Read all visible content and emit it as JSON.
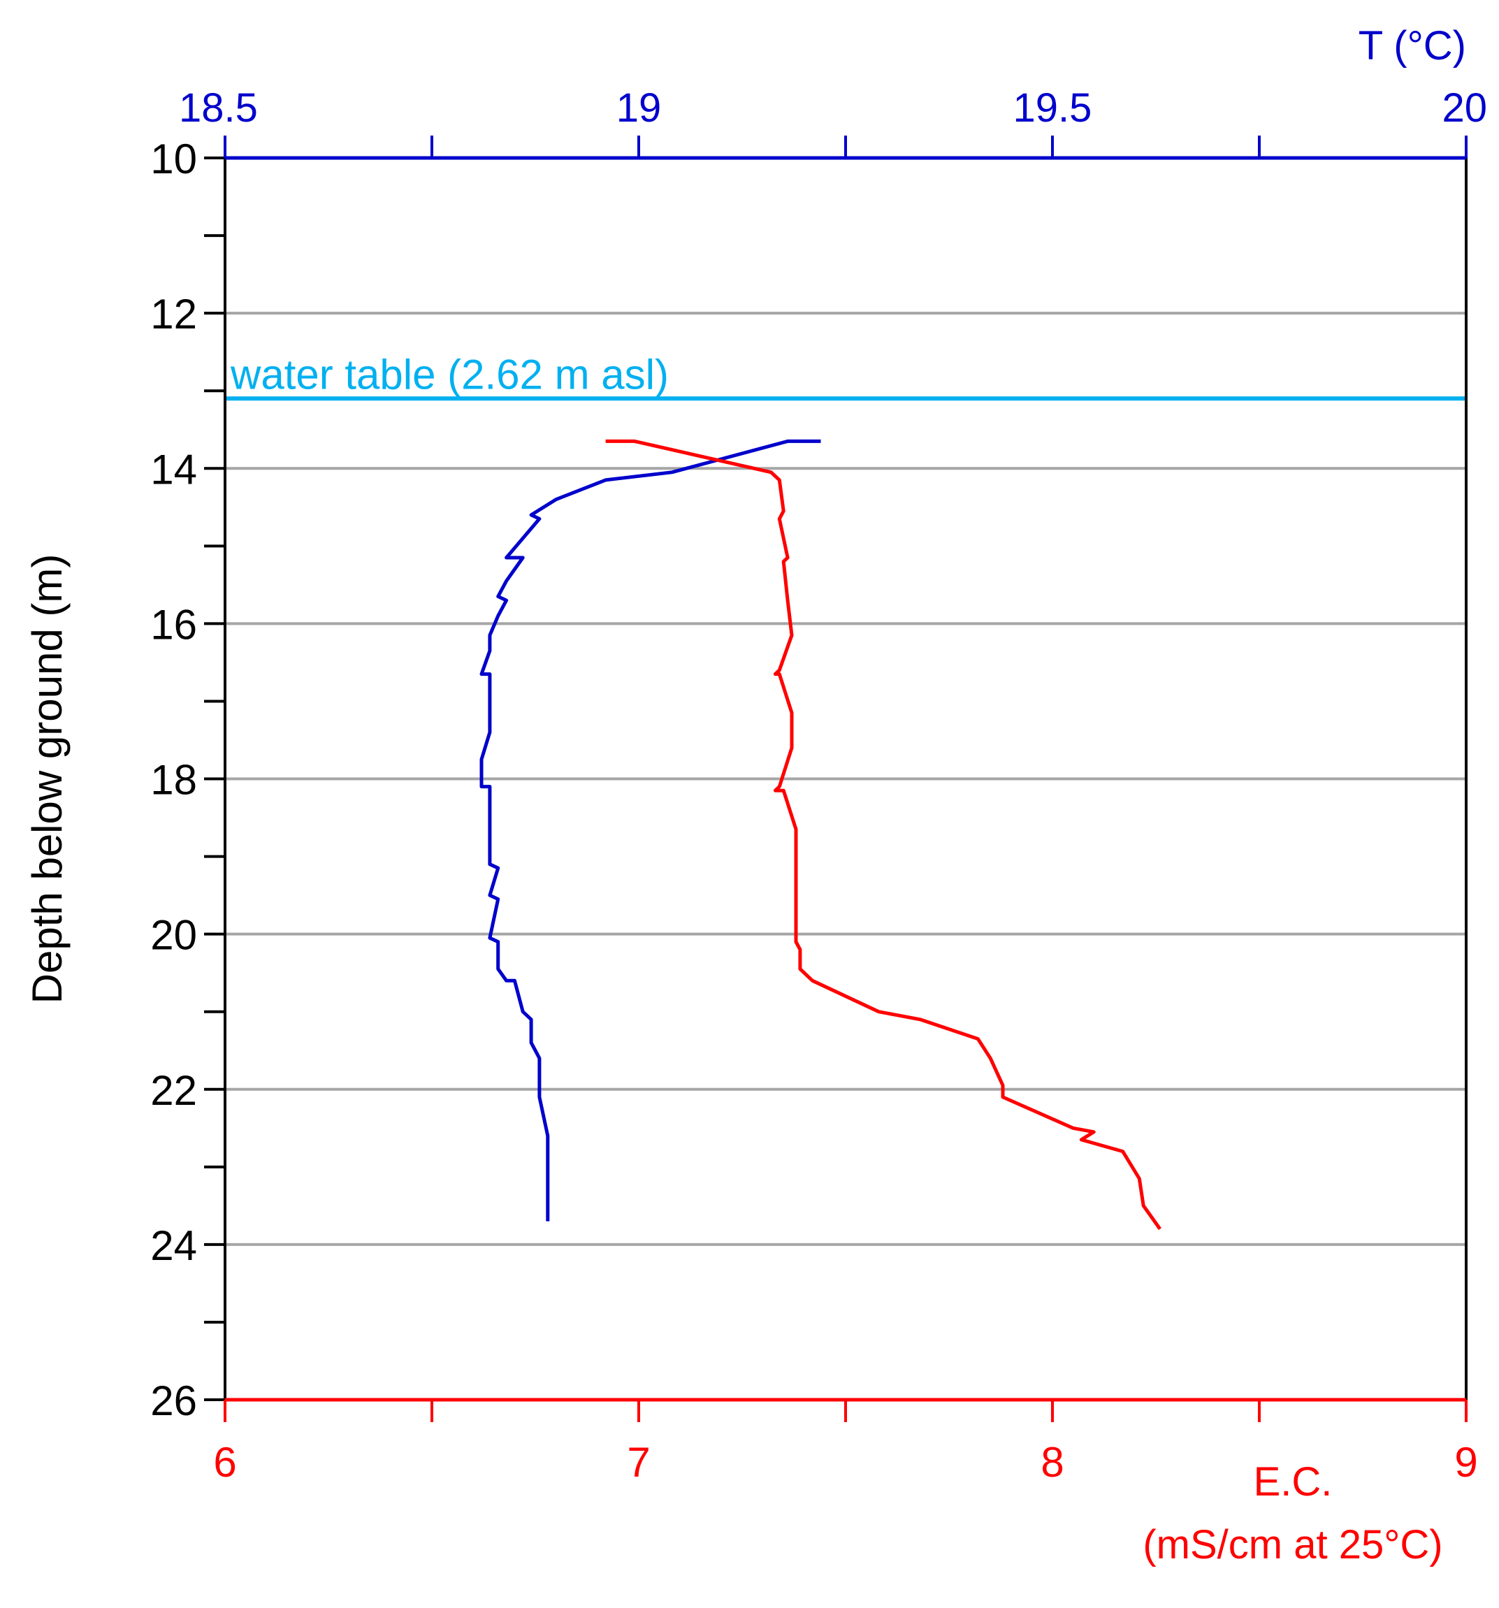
{
  "chart_data": {
    "type": "line",
    "y_axis": {
      "label": "Depth below ground (m)",
      "range": [
        10,
        26
      ],
      "inverted": true,
      "major_ticks": [
        10,
        12,
        14,
        16,
        18,
        20,
        22,
        24,
        26
      ],
      "minor_ticks": [
        11,
        13,
        15,
        17,
        19,
        21,
        23,
        25
      ],
      "gridlines": [
        12,
        14,
        16,
        18,
        20,
        22,
        24
      ]
    },
    "top_axis": {
      "label": "T (°C)",
      "range": [
        18.5,
        20
      ],
      "tick_labels": [
        "18.5",
        "19",
        "19.5",
        "20"
      ],
      "minor_ticks": [
        18.75,
        19.25,
        19.75
      ],
      "color": "#0000CC"
    },
    "bottom_axis": {
      "label_line1": "E.C.",
      "label_line2": "(mS/cm at 25°C)",
      "range": [
        6,
        9
      ],
      "tick_labels": [
        "6",
        "7",
        "8",
        "9"
      ],
      "minor_ticks": [
        6.5,
        7.5,
        8.5
      ],
      "color": "#FF0000"
    },
    "annotation": {
      "text": "water table (2.62 m asl)",
      "depth": 13.1,
      "color": "#00B0F0"
    },
    "series": [
      {
        "axis": "top",
        "color": "#0000CC",
        "points": [
          [
            19.22,
            13.65
          ],
          [
            19.18,
            13.65
          ],
          [
            19.04,
            14.05
          ],
          [
            18.96,
            14.15
          ],
          [
            18.9,
            14.4
          ],
          [
            18.87,
            14.6
          ],
          [
            18.88,
            14.65
          ],
          [
            18.86,
            14.9
          ],
          [
            18.84,
            15.15
          ],
          [
            18.86,
            15.15
          ],
          [
            18.84,
            15.45
          ],
          [
            18.83,
            15.65
          ],
          [
            18.84,
            15.7
          ],
          [
            18.83,
            15.9
          ],
          [
            18.82,
            16.15
          ],
          [
            18.82,
            16.35
          ],
          [
            18.81,
            16.65
          ],
          [
            18.82,
            16.65
          ],
          [
            18.82,
            17.1
          ],
          [
            18.82,
            17.4
          ],
          [
            18.81,
            17.75
          ],
          [
            18.81,
            18.1
          ],
          [
            18.82,
            18.1
          ],
          [
            18.82,
            18.6
          ],
          [
            18.82,
            19.1
          ],
          [
            18.83,
            19.15
          ],
          [
            18.82,
            19.5
          ],
          [
            18.83,
            19.55
          ],
          [
            18.82,
            20.05
          ],
          [
            18.83,
            20.1
          ],
          [
            18.83,
            20.45
          ],
          [
            18.84,
            20.6
          ],
          [
            18.85,
            20.6
          ],
          [
            18.86,
            21.0
          ],
          [
            18.87,
            21.1
          ],
          [
            18.87,
            21.4
          ],
          [
            18.88,
            21.6
          ],
          [
            18.88,
            22.1
          ],
          [
            18.89,
            22.6
          ],
          [
            18.89,
            23.0
          ],
          [
            18.89,
            23.4
          ],
          [
            18.89,
            23.6
          ],
          [
            18.89,
            23.7
          ]
        ]
      },
      {
        "axis": "bottom",
        "color": "#FF0000",
        "points": [
          [
            6.92,
            13.65
          ],
          [
            6.99,
            13.65
          ],
          [
            7.32,
            14.05
          ],
          [
            7.34,
            14.15
          ],
          [
            7.35,
            14.55
          ],
          [
            7.34,
            14.65
          ],
          [
            7.36,
            15.15
          ],
          [
            7.35,
            15.2
          ],
          [
            7.36,
            15.7
          ],
          [
            7.37,
            16.15
          ],
          [
            7.34,
            16.6
          ],
          [
            7.33,
            16.65
          ],
          [
            7.34,
            16.65
          ],
          [
            7.37,
            17.15
          ],
          [
            7.37,
            17.6
          ],
          [
            7.34,
            18.1
          ],
          [
            7.33,
            18.15
          ],
          [
            7.35,
            18.15
          ],
          [
            7.38,
            18.65
          ],
          [
            7.38,
            19.15
          ],
          [
            7.38,
            19.6
          ],
          [
            7.38,
            20.1
          ],
          [
            7.39,
            20.2
          ],
          [
            7.39,
            20.45
          ],
          [
            7.42,
            20.6
          ],
          [
            7.58,
            21.0
          ],
          [
            7.68,
            21.1
          ],
          [
            7.82,
            21.35
          ],
          [
            7.85,
            21.6
          ],
          [
            7.88,
            21.95
          ],
          [
            7.88,
            22.1
          ],
          [
            8.05,
            22.5
          ],
          [
            8.1,
            22.55
          ],
          [
            8.07,
            22.65
          ],
          [
            8.17,
            22.8
          ],
          [
            8.21,
            23.15
          ],
          [
            8.22,
            23.5
          ],
          [
            8.24,
            23.65
          ],
          [
            8.26,
            23.8
          ]
        ]
      }
    ]
  }
}
